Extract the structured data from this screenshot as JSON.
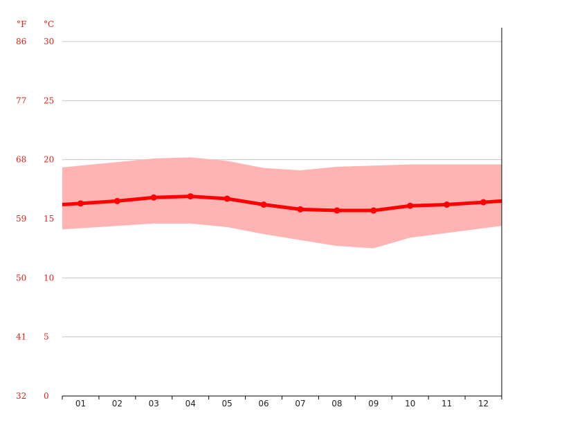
{
  "chart_data": {
    "type": "line",
    "title": "",
    "units": {
      "fahrenheit": "°F",
      "celsius": "°C"
    },
    "x": [
      "01",
      "02",
      "03",
      "04",
      "05",
      "06",
      "07",
      "08",
      "09",
      "10",
      "11",
      "12"
    ],
    "ylim": [
      0,
      30
    ],
    "yticks_celsius": [
      0,
      5,
      10,
      15,
      20,
      25,
      30
    ],
    "yticks_fahrenheit": [
      32,
      41,
      50,
      59,
      68,
      77,
      86
    ],
    "grid": true,
    "series": [
      {
        "role": "mean",
        "values": [
          16.3,
          16.5,
          16.8,
          16.9,
          16.7,
          16.2,
          15.8,
          15.7,
          15.7,
          16.1,
          16.2,
          16.4
        ]
      },
      {
        "role": "max",
        "values": [
          19.5,
          19.8,
          20.1,
          20.2,
          19.9,
          19.3,
          19.1,
          19.4,
          19.5,
          19.6,
          19.6,
          19.6
        ]
      },
      {
        "role": "min",
        "values": [
          14.2,
          14.4,
          14.6,
          14.6,
          14.3,
          13.7,
          13.2,
          12.7,
          12.5,
          13.4,
          13.8,
          14.2
        ]
      }
    ],
    "colors": {
      "mean_line": "#ff0000",
      "range_band": "#ffb3b3",
      "tick_labels": "#e0201b"
    }
  }
}
